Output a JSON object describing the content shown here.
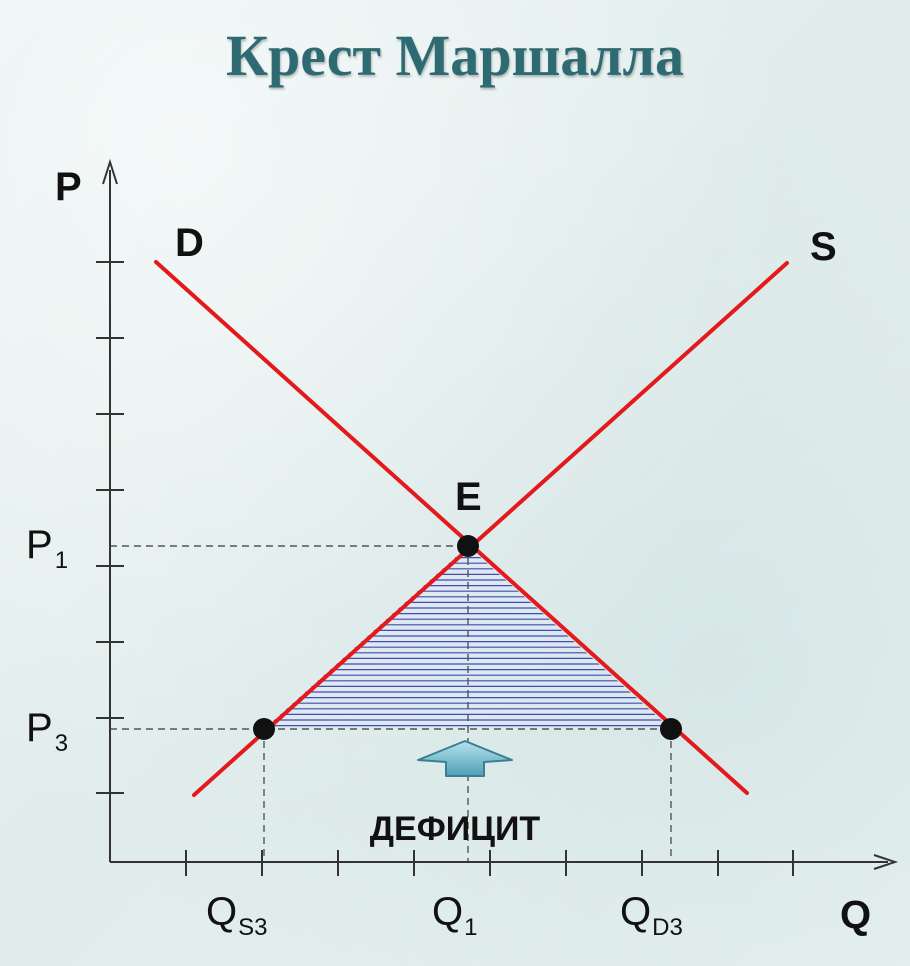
{
  "title": "Крест Маршалла",
  "axes": {
    "y_label": "P",
    "x_label": "Q"
  },
  "curves": {
    "demand_label": "D",
    "supply_label": "S"
  },
  "equilibrium_label": "E",
  "price_labels": {
    "p1_main": "P",
    "p1_sub": "1",
    "p3_main": "P",
    "p3_sub": "3"
  },
  "quantity_labels": {
    "qs3_main": "Q",
    "qs3_sub": "S3",
    "q1_main": "Q",
    "q1_sub": "1",
    "qd3_main": "Q",
    "qd3_sub": "D3"
  },
  "deficit_label": "ДЕФИЦИТ",
  "colors": {
    "curve": "#e3191c",
    "hatch": "#3d4fb0",
    "title": "#2e6a72",
    "arrow": "#7fc3d3"
  }
}
